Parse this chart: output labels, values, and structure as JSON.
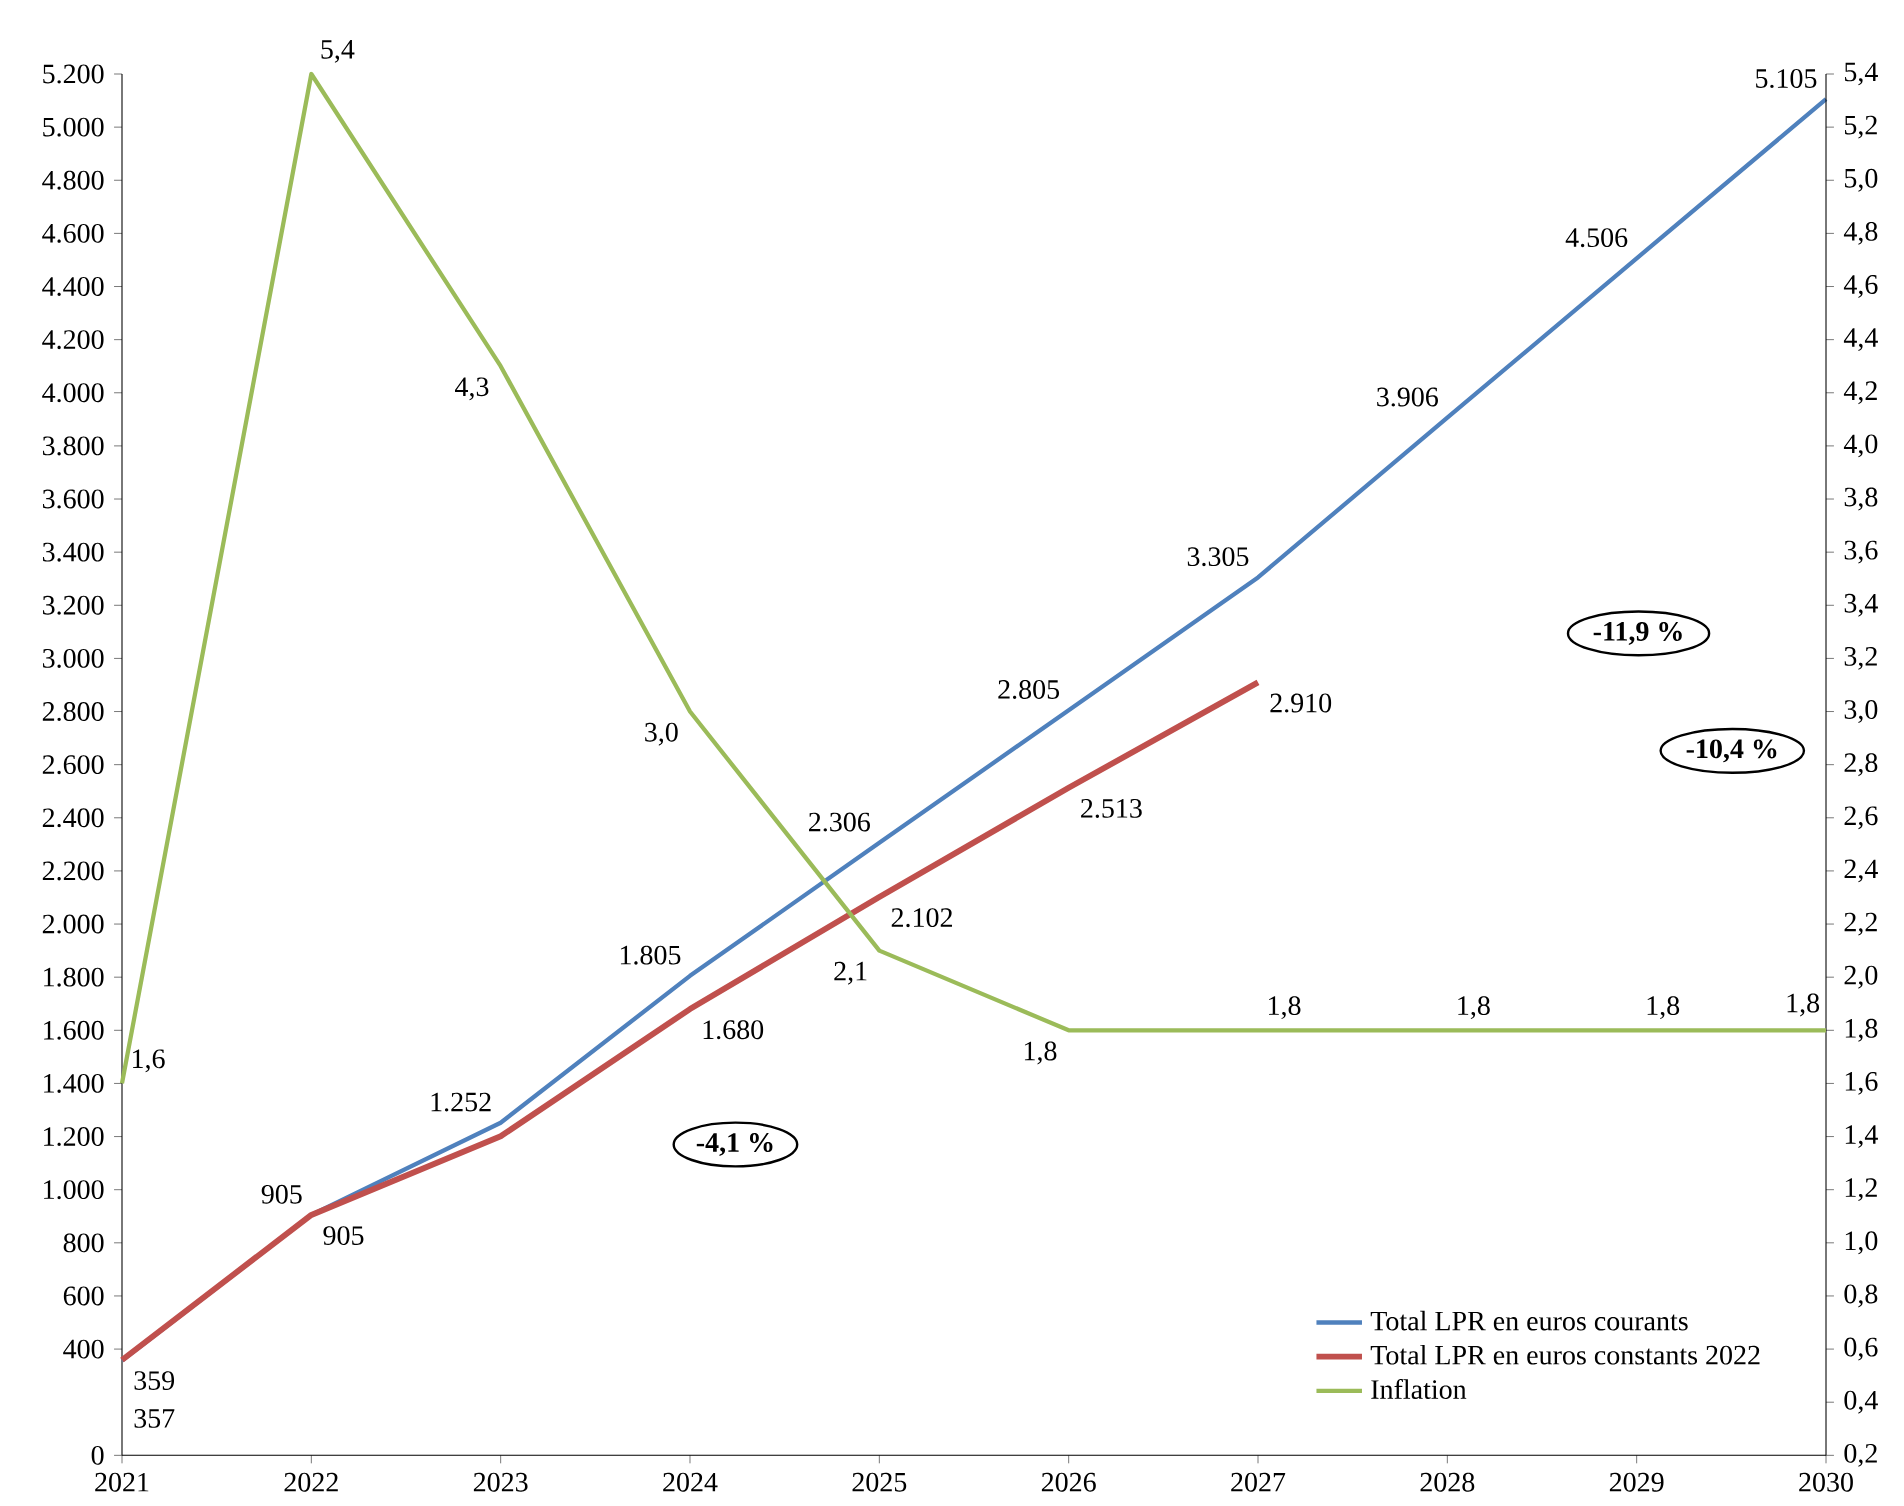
{
  "chart_data": {
    "type": "line",
    "x": [
      2021,
      2022,
      2023,
      2024,
      2025,
      2026,
      2027,
      2028,
      2029,
      2030
    ],
    "series": [
      {
        "name": "Total LPR en euros courants",
        "color": "#4f81bd",
        "values": [
          357,
          905,
          1252,
          1805,
          2306,
          2805,
          3305,
          3906,
          4506,
          5105
        ],
        "value_labels": [
          "357",
          "905",
          "1.252",
          "1.805",
          "2.306",
          "2.805",
          "3.305",
          "3.906",
          "4.506",
          "5.105"
        ]
      },
      {
        "name": "Total LPR en euros constants 2022",
        "color": "#c0504d",
        "values": [
          359,
          905,
          1201,
          1680,
          2102,
          2513,
          2910,
          null,
          null,
          null
        ],
        "value_labels": [
          "359",
          "905",
          null,
          "1.680",
          "2.102",
          "2.513",
          "2.910",
          null,
          null,
          null
        ]
      },
      {
        "name": "Inflation",
        "color": "#9bbb59",
        "axis": "y2",
        "values": [
          1.6,
          5.4,
          4.3,
          3.0,
          2.1,
          1.8,
          1.8,
          1.8,
          1.8,
          1.8
        ],
        "value_labels": [
          "1,6",
          "5,4",
          "4,3",
          "3,0",
          "2,1",
          "1,8",
          "1,8",
          "1,8",
          "1,8",
          "1,8"
        ]
      }
    ],
    "xlim": [
      2021,
      2030
    ],
    "xticks": [
      2021,
      2022,
      2023,
      2024,
      2025,
      2026,
      2027,
      2028,
      2029,
      2030
    ],
    "ylim": [
      0,
      5200
    ],
    "yticks": [
      {
        "value": 0,
        "label": "0"
      },
      {
        "value": 400,
        "label": "400"
      },
      {
        "value": 600,
        "label": "600"
      },
      {
        "value": 800,
        "label": "800"
      },
      {
        "value": 1000,
        "label": "1.000"
      },
      {
        "value": 1200,
        "label": "1.200"
      },
      {
        "value": 1400,
        "label": "1.400"
      },
      {
        "value": 1600,
        "label": "1.600"
      },
      {
        "value": 1800,
        "label": "1.800"
      },
      {
        "value": 2000,
        "label": "2.000"
      },
      {
        "value": 2200,
        "label": "2.200"
      },
      {
        "value": 2400,
        "label": "2.400"
      },
      {
        "value": 2600,
        "label": "2.600"
      },
      {
        "value": 2800,
        "label": "2.800"
      },
      {
        "value": 3000,
        "label": "3.000"
      },
      {
        "value": 3200,
        "label": "3.200"
      },
      {
        "value": 3400,
        "label": "3.400"
      },
      {
        "value": 3600,
        "label": "3.600"
      },
      {
        "value": 3800,
        "label": "3.800"
      },
      {
        "value": 4000,
        "label": "4.000"
      },
      {
        "value": 4200,
        "label": "4.200"
      },
      {
        "value": 4400,
        "label": "4.400"
      },
      {
        "value": 4600,
        "label": "4.600"
      },
      {
        "value": 4800,
        "label": "4.800"
      },
      {
        "value": 5000,
        "label": "5.000"
      },
      {
        "value": 5200,
        "label": "5.200"
      }
    ],
    "y2lim": [
      0.2,
      5.4
    ],
    "y2ticks": [
      {
        "value": 0.2,
        "label": "0,2"
      },
      {
        "value": 0.4,
        "label": "0,4"
      },
      {
        "value": 0.6,
        "label": "0,6"
      },
      {
        "value": 0.8,
        "label": "0,8"
      },
      {
        "value": 1.0,
        "label": "1,0"
      },
      {
        "value": 1.2,
        "label": "1,2"
      },
      {
        "value": 1.4,
        "label": "1,4"
      },
      {
        "value": 1.6,
        "label": "1,6"
      },
      {
        "value": 1.8,
        "label": "1,8"
      },
      {
        "value": 2.0,
        "label": "2,0"
      },
      {
        "value": 2.2,
        "label": "2,2"
      },
      {
        "value": 2.4,
        "label": "2,4"
      },
      {
        "value": 2.6,
        "label": "2,6"
      },
      {
        "value": 2.8,
        "label": "2,8"
      },
      {
        "value": 3.0,
        "label": "3,0"
      },
      {
        "value": 3.2,
        "label": "3,2"
      },
      {
        "value": 3.4,
        "label": "3,4"
      },
      {
        "value": 3.6,
        "label": "3,6"
      },
      {
        "value": 3.8,
        "label": "3,8"
      },
      {
        "value": 4.0,
        "label": "4,0"
      },
      {
        "value": 4.2,
        "label": "4,2"
      },
      {
        "value": 4.4,
        "label": "4,4"
      },
      {
        "value": 4.6,
        "label": "4,6"
      },
      {
        "value": 4.8,
        "label": "4,8"
      },
      {
        "value": 5.0,
        "label": "5,0"
      },
      {
        "value": 5.2,
        "label": "5,2"
      },
      {
        "value": 5.4,
        "label": "5,4"
      }
    ],
    "annotations": [
      "-11,9 %",
      "-10,4 %",
      "-4,1 %"
    ],
    "legend": "bottom right",
    "grid": false,
    "marker": "none",
    "line_style": "solid"
  }
}
